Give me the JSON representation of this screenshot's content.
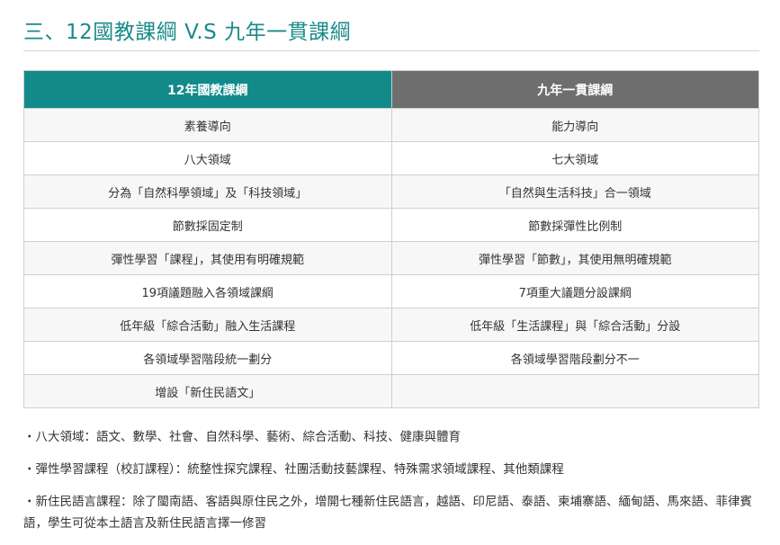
{
  "title": "三、12國教課綱 V.S 九年一貫課綱",
  "table": {
    "headers": [
      "12年國教課綱",
      "九年一貫課綱"
    ],
    "rows": [
      [
        "素養導向",
        "能力導向"
      ],
      [
        "八大領域",
        "七大領域"
      ],
      [
        "分為「自然科學領域」及「科技領域」",
        "「自然與生活科技」合一領域"
      ],
      [
        "節數採固定制",
        "節數採彈性比例制"
      ],
      [
        "彈性學習「課程」，其使用有明確規範",
        "彈性學習「節數」，其使用無明確規範"
      ],
      [
        "19項議題融入各領域課綱",
        "7項重大議題分設課綱"
      ],
      [
        "低年級「綜合活動」融入生活課程",
        "低年級「生活課程」與「綜合活動」分設"
      ],
      [
        "各領域學習階段統一劃分",
        "各領域學習階段劃分不一"
      ],
      [
        "增設「新住民語文」",
        ""
      ]
    ]
  },
  "notes": [
    "・八大領域：語文、數學、社會、自然科學、藝術、綜合活動、科技、健康與體育",
    "・彈性學習課程（校訂課程）：統整性探究課程、社團活動技藝課程、特殊需求領域課程、其他類課程",
    "・新住民語言課程：除了閩南語、客語與原住民之外，增開七種新住民語言，越語、印尼語、泰語、柬埔寨語、緬甸語、馬來語、菲律賓語，學生可從本土語言及新住民語言擇一修習"
  ]
}
